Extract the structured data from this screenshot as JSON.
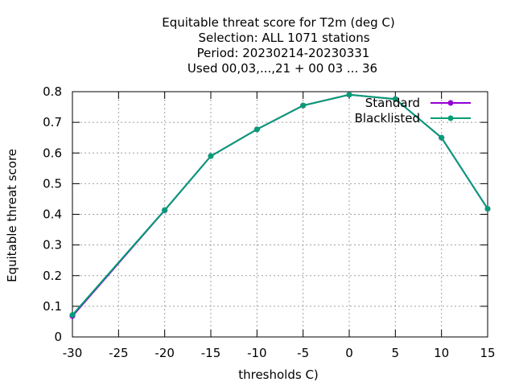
{
  "chart_data": {
    "type": "line",
    "title_lines": [
      "Equitable threat score  for T2m (deg C)",
      "Selection: ALL   1071 stations",
      "Period: 20230214-20230331",
      "Used  00,03,...,21  + 00 03 ... 36"
    ],
    "xlabel": "thresholds C)",
    "ylabel": "Equitable threat score",
    "xlim": [
      -30,
      15
    ],
    "ylim": [
      0,
      0.8
    ],
    "xticks": [
      -30,
      -25,
      -20,
      -15,
      -10,
      -5,
      0,
      5,
      10,
      15
    ],
    "yticks": [
      0,
      0.1,
      0.2,
      0.3,
      0.4,
      0.5,
      0.6,
      0.7,
      0.8
    ],
    "xtick_labels": [
      "-30",
      "-25",
      "-20",
      "-15",
      "-10",
      "-5",
      "0",
      "5",
      "10",
      "15"
    ],
    "ytick_labels": [
      "0",
      "0.1",
      "0.2",
      "0.3",
      "0.4",
      "0.5",
      "0.6",
      "0.7",
      "0.8"
    ],
    "grid": true,
    "legend_position": "top-right",
    "x": [
      -30,
      -20,
      -15,
      -10,
      -5,
      0,
      5,
      10,
      15
    ],
    "series": [
      {
        "name": "Standard",
        "color": "#9400d3",
        "values": [
          0.068,
          0.413,
          0.59,
          0.677,
          0.755,
          0.79,
          0.776,
          0.65,
          0.418
        ]
      },
      {
        "name": "Blacklisted",
        "color": "#009e73",
        "values": [
          0.072,
          0.414,
          0.59,
          0.677,
          0.755,
          0.79,
          0.776,
          0.65,
          0.418
        ]
      }
    ]
  }
}
